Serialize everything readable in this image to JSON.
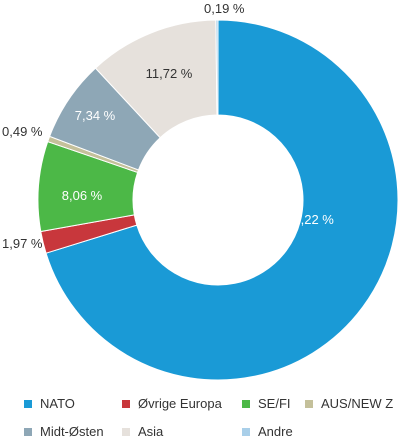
{
  "chart_data": {
    "type": "pie",
    "title": "",
    "categories": [
      "NATO",
      "Øvrige Europa",
      "SE/FI",
      "AUS/NEW Z",
      "Midt-Østen",
      "Asia",
      "Andre"
    ],
    "values": [
      70.22,
      1.97,
      8.06,
      0.49,
      7.34,
      11.72,
      0.19
    ],
    "labels": [
      "70,22 %",
      "1,97 %",
      "8,06 %",
      "0,49 %",
      "7,34 %",
      "11,72 %",
      "0,19 %"
    ],
    "colors": [
      "#1a9ad6",
      "#c8373c",
      "#4cb847",
      "#c4c09a",
      "#8ea7b6",
      "#e6e1dc",
      "#a9cfe9"
    ],
    "legend_position": "bottom",
    "donut": true
  }
}
